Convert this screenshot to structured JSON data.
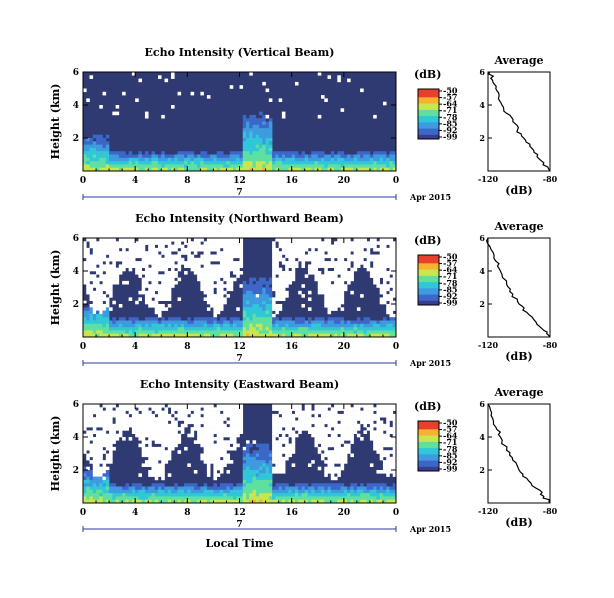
{
  "chart_data": {
    "type": "heatmap",
    "panels": [
      {
        "title": "Echo Intensity (Vertical Beam)",
        "ylabel": "Height (km)",
        "y_ticks": [
          "2",
          "4",
          "6"
        ],
        "ylim": [
          0,
          6
        ],
        "x_ticks": [
          "0",
          "4",
          "8",
          "12",
          "16",
          "20",
          "0"
        ],
        "xlim_hours": [
          0,
          24
        ],
        "date_day": "7",
        "date_month_year": "Apr 2015",
        "colorbar": {
          "label": "(dB)",
          "ticks": [
            "-50",
            "-57",
            "-64",
            "-71",
            "-78",
            "-85",
            "-92",
            "-99"
          ],
          "range": [
            -99,
            -50
          ]
        },
        "average": {
          "title": "Average",
          "xlabel": "(dB)",
          "x_ticks": [
            "-120",
            "-80"
          ],
          "y_ticks": [
            "2",
            "4",
            "6"
          ],
          "xlim": [
            -120,
            -80
          ],
          "ylim": [
            0,
            6
          ],
          "profile": [
            [
              -80,
              0
            ],
            [
              -84,
              0.5
            ],
            [
              -88,
              1
            ],
            [
              -93,
              1.5
            ],
            [
              -97,
              2
            ],
            [
              -101,
              2.5
            ],
            [
              -104,
              3
            ],
            [
              -108,
              3.5
            ],
            [
              -111,
              4
            ],
            [
              -113,
              4.5
            ],
            [
              -115,
              5
            ],
            [
              -117,
              5.5
            ],
            [
              -119,
              6
            ]
          ]
        }
      },
      {
        "title": "Echo Intensity (Northward Beam)",
        "ylabel": "Height (km)",
        "y_ticks": [
          "2",
          "4",
          "6"
        ],
        "ylim": [
          0,
          6
        ],
        "x_ticks": [
          "0",
          "4",
          "8",
          "12",
          "16",
          "20",
          "0"
        ],
        "xlim_hours": [
          0,
          24
        ],
        "date_day": "7",
        "date_month_year": "Apr 2015",
        "colorbar": {
          "label": "(dB)",
          "ticks": [
            "-50",
            "-57",
            "-64",
            "-71",
            "-78",
            "-85",
            "-92",
            "-99"
          ],
          "range": [
            -99,
            -50
          ]
        },
        "average": {
          "title": "Average",
          "xlabel": "(dB)",
          "x_ticks": [
            "-120",
            "-80"
          ],
          "y_ticks": [
            "2",
            "4",
            "6"
          ],
          "xlim": [
            -120,
            -80
          ],
          "ylim": [
            0,
            6
          ],
          "profile": [
            [
              -80,
              0
            ],
            [
              -84,
              0.4
            ],
            [
              -89,
              0.9
            ],
            [
              -95,
              1.5
            ],
            [
              -100,
              2
            ],
            [
              -104,
              2.6
            ],
            [
              -108,
              3.2
            ],
            [
              -112,
              4
            ],
            [
              -115,
              4.6
            ],
            [
              -118,
              5.3
            ],
            [
              -120,
              6
            ]
          ]
        }
      },
      {
        "title": "Echo Intensity (Eastward Beam)",
        "ylabel": "Height (km)",
        "y_ticks": [
          "2",
          "4",
          "6"
        ],
        "ylim": [
          0,
          6
        ],
        "x_ticks": [
          "0",
          "4",
          "8",
          "12",
          "16",
          "20",
          "0"
        ],
        "xlim_hours": [
          0,
          24
        ],
        "date_day": "7",
        "date_month_year": "Apr 2015",
        "colorbar": {
          "label": "(dB)",
          "ticks": [
            "-50",
            "-57",
            "-64",
            "-71",
            "-78",
            "-85",
            "-92",
            "-99"
          ],
          "range": [
            -99,
            -50
          ]
        },
        "average": {
          "title": "Average",
          "xlabel": "(dB)",
          "x_ticks": [
            "-120",
            "-80"
          ],
          "y_ticks": [
            "2",
            "4",
            "6"
          ],
          "xlim": [
            -120,
            -80
          ],
          "ylim": [
            0,
            6
          ],
          "profile": [
            [
              -80,
              0
            ],
            [
              -84,
              0.4
            ],
            [
              -89,
              0.9
            ],
            [
              -95,
              1.5
            ],
            [
              -100,
              2
            ],
            [
              -104,
              2.6
            ],
            [
              -108,
              3.2
            ],
            [
              -112,
              4
            ],
            [
              -115,
              4.6
            ],
            [
              -118,
              5.3
            ],
            [
              -120,
              6
            ]
          ]
        }
      }
    ],
    "xlabel": "Local Time",
    "colors": {
      "background_echo": "#2f3a73",
      "colormap": [
        "#3b3d8c",
        "#3c66c8",
        "#3f9be0",
        "#30c8d8",
        "#5fe0a0",
        "#c8e650",
        "#f8b232",
        "#e8402a"
      ]
    }
  }
}
